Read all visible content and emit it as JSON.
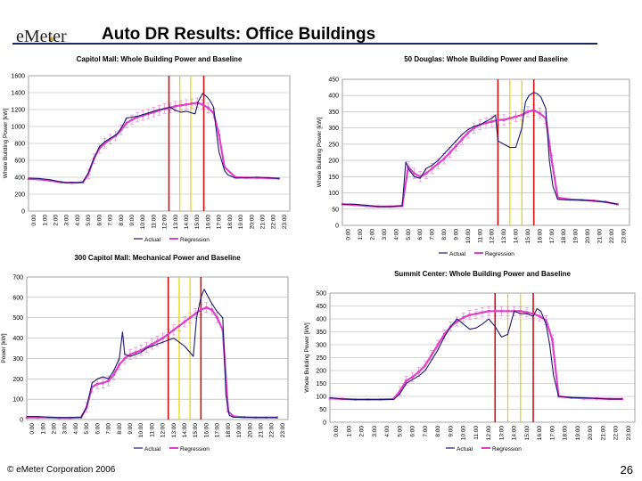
{
  "header": {
    "brand": "eMeter",
    "title": "Auto DR Results: Office Buildings"
  },
  "footer": {
    "copyright": "© eMeter Corporation 2006",
    "page_number": "26"
  },
  "colors": {
    "actual": "#1a1a6e",
    "regression": "#e040c8",
    "error_bar": "#e8a0e0",
    "red_line": "#d01010",
    "yellow_line": "#e8d000"
  },
  "hours": [
    "0:00",
    "1:00",
    "2:00",
    "3:00",
    "4:00",
    "5:00",
    "6:00",
    "7:00",
    "8:00",
    "9:00",
    "10:00",
    "11:00",
    "12:00",
    "13:00",
    "14:00",
    "15:00",
    "16:00",
    "17:00",
    "18:00",
    "19:00",
    "20:00",
    "21:00",
    "22:00",
    "23:00"
  ],
  "chart_data": [
    {
      "type": "line",
      "title": "Capitol Mall: Whole Building Power and Baseline",
      "ylabel": "Whole Building Power [kW]",
      "ylim": [
        0,
        1600
      ],
      "yticks": [
        0,
        200,
        400,
        600,
        800,
        1000,
        1200,
        1400,
        1600
      ],
      "grid": true,
      "legend": [
        "Actual",
        "Regression"
      ],
      "vlines": {
        "red": [
          12.9,
          16.1
        ],
        "yellow": [
          13.9,
          14.9
        ]
      },
      "series": [
        {
          "name": "Actual",
          "x": [
            0,
            1,
            2,
            3,
            3.5,
            4,
            4.5,
            5,
            5.5,
            6,
            6.5,
            7,
            7.5,
            8,
            8.3,
            8.6,
            9,
            9.5,
            10,
            10.5,
            11,
            11.5,
            12,
            12.5,
            13,
            13.5,
            14,
            14.5,
            15,
            15.3,
            15.6,
            16,
            16.3,
            16.6,
            17,
            17.2,
            17.5,
            18,
            18.3,
            19,
            20,
            21,
            22,
            23
          ],
          "values": [
            390,
            385,
            370,
            345,
            335,
            340,
            335,
            345,
            450,
            620,
            760,
            820,
            860,
            900,
            940,
            1000,
            1100,
            1110,
            1120,
            1140,
            1160,
            1180,
            1200,
            1210,
            1230,
            1190,
            1170,
            1180,
            1160,
            1150,
            1300,
            1390,
            1360,
            1320,
            1230,
            1000,
            700,
            480,
            430,
            390,
            395,
            400,
            395,
            385
          ]
        },
        {
          "name": "Regression",
          "x": [
            0,
            1,
            2,
            3,
            4,
            5,
            5.5,
            6,
            6.5,
            7,
            7.5,
            8,
            8.5,
            9,
            9.5,
            10,
            10.5,
            11,
            11.5,
            12,
            12.5,
            13,
            13.5,
            14,
            14.5,
            15,
            15.5,
            16,
            16.5,
            17,
            17.5,
            18,
            19,
            20,
            21,
            22,
            23
          ],
          "values": [
            380,
            375,
            360,
            340,
            335,
            340,
            440,
            620,
            740,
            800,
            850,
            890,
            960,
            1040,
            1080,
            1110,
            1130,
            1150,
            1170,
            1190,
            1210,
            1220,
            1240,
            1250,
            1260,
            1270,
            1280,
            1260,
            1220,
            1160,
            900,
            520,
            400,
            395,
            395,
            390,
            385
          ]
        }
      ]
    },
    {
      "type": "line",
      "title": "50 Douglas: Whole Building Power and Baseline",
      "ylabel": "Whole Building Power [kW]",
      "ylim": [
        0,
        450
      ],
      "yticks": [
        0,
        50,
        100,
        150,
        200,
        250,
        300,
        350,
        400,
        450
      ],
      "grid": true,
      "legend": [
        "Actual",
        "Regression"
      ],
      "vlines": {
        "red": [
          13.0,
          16.0
        ],
        "yellow": [
          14.0,
          15.0
        ]
      },
      "series": [
        {
          "name": "Actual",
          "x": [
            0,
            1,
            2,
            3,
            4,
            5,
            5.3,
            5.6,
            6,
            6.5,
            7,
            7.5,
            8,
            8.5,
            9,
            9.5,
            10,
            10.5,
            11,
            11.5,
            12,
            12.5,
            12.8,
            13,
            13.5,
            14,
            14.5,
            15,
            15.3,
            15.6,
            16,
            16.3,
            16.6,
            17,
            17.3,
            17.6,
            18,
            19,
            20,
            21,
            22,
            23
          ],
          "values": [
            65,
            65,
            62,
            58,
            58,
            60,
            195,
            170,
            150,
            145,
            175,
            185,
            200,
            220,
            240,
            260,
            280,
            295,
            305,
            310,
            320,
            330,
            340,
            260,
            250,
            240,
            240,
            300,
            380,
            400,
            410,
            405,
            395,
            360,
            200,
            120,
            80,
            78,
            78,
            75,
            72,
            65
          ]
        },
        {
          "name": "Regression",
          "x": [
            0,
            1,
            2,
            3,
            4,
            5,
            5.5,
            6,
            6.5,
            7,
            7.5,
            8,
            8.5,
            9,
            9.5,
            10,
            10.5,
            11,
            11.5,
            12,
            12.5,
            13,
            13.5,
            14,
            14.5,
            15,
            15.5,
            16,
            16.5,
            17,
            17.5,
            18,
            19,
            20,
            21,
            22,
            23
          ],
          "values": [
            65,
            63,
            60,
            58,
            58,
            60,
            180,
            160,
            150,
            160,
            175,
            190,
            205,
            225,
            245,
            265,
            285,
            300,
            310,
            315,
            320,
            325,
            325,
            330,
            335,
            340,
            350,
            355,
            345,
            330,
            200,
            85,
            80,
            78,
            76,
            72,
            65
          ]
        }
      ]
    },
    {
      "type": "line",
      "title": "300 Capitol Mall: Mechanical Power and Baseline",
      "ylabel": "Power [kW]",
      "ylim": [
        0,
        700
      ],
      "yticks": [
        0,
        100,
        200,
        300,
        400,
        500,
        600,
        700
      ],
      "grid": true,
      "legend": [
        "Actual",
        "Regression"
      ],
      "vlines": {
        "red": [
          13.0,
          16.0
        ],
        "yellow": [
          14.0,
          15.0
        ]
      },
      "series": [
        {
          "name": "Actual",
          "x": [
            0,
            1,
            2,
            3,
            4,
            5,
            5.5,
            6,
            6.5,
            7,
            7.5,
            8,
            8.5,
            8.8,
            9,
            9.5,
            10,
            10.5,
            11,
            11.5,
            12,
            12.5,
            13,
            13.5,
            14,
            14.5,
            15,
            15.3,
            15.6,
            16,
            16.3,
            16.6,
            17,
            17.5,
            18,
            18.3,
            18.6,
            19,
            20,
            21,
            22,
            23
          ],
          "values": [
            15,
            15,
            12,
            10,
            10,
            12,
            60,
            180,
            200,
            210,
            200,
            240,
            300,
            430,
            320,
            310,
            320,
            330,
            350,
            360,
            370,
            380,
            390,
            400,
            380,
            360,
            330,
            310,
            500,
            600,
            640,
            610,
            570,
            530,
            500,
            120,
            20,
            12,
            10,
            10,
            10,
            10
          ]
        },
        {
          "name": "Regression",
          "x": [
            0,
            1,
            2,
            3,
            4,
            5,
            5.5,
            6,
            6.5,
            7,
            7.5,
            8,
            8.5,
            9,
            9.5,
            10,
            10.5,
            11,
            11.5,
            12,
            12.5,
            13,
            13.5,
            14,
            14.5,
            15,
            15.5,
            16,
            16.5,
            17,
            17.5,
            18,
            18.5,
            19,
            20,
            21,
            22,
            23
          ],
          "values": [
            10,
            10,
            10,
            8,
            8,
            10,
            60,
            160,
            175,
            180,
            190,
            220,
            270,
            300,
            320,
            330,
            340,
            355,
            370,
            385,
            400,
            420,
            440,
            460,
            480,
            500,
            520,
            540,
            550,
            540,
            500,
            440,
            40,
            15,
            12,
            10,
            10,
            10
          ]
        }
      ]
    },
    {
      "type": "line",
      "title": "Summit Center: Whole Building Power and Baseline",
      "ylabel": "Whole Building Power [kW]",
      "ylim": [
        0,
        500
      ],
      "yticks": [
        0,
        50,
        100,
        150,
        200,
        250,
        300,
        350,
        400,
        450,
        500
      ],
      "grid": true,
      "legend": [
        "Actual",
        "Regression"
      ],
      "vlines": {
        "red": [
          13.0,
          16.0
        ],
        "yellow": [
          14.0,
          15.0
        ]
      },
      "series": [
        {
          "name": "Actual",
          "x": [
            0,
            1,
            2,
            3,
            4,
            5,
            5.5,
            6,
            6.5,
            7,
            7.5,
            8,
            8.5,
            9,
            9.5,
            10,
            10.5,
            11,
            11.5,
            12,
            12.5,
            13,
            13.5,
            14,
            14.5,
            15,
            15.5,
            16,
            16.3,
            16.6,
            17,
            17.3,
            17.6,
            18,
            19,
            20,
            21,
            22,
            23
          ],
          "values": [
            95,
            90,
            88,
            88,
            88,
            88,
            110,
            150,
            165,
            180,
            200,
            240,
            280,
            330,
            370,
            400,
            380,
            360,
            365,
            380,
            400,
            370,
            330,
            340,
            430,
            420,
            420,
            410,
            440,
            430,
            380,
            300,
            180,
            100,
            95,
            95,
            92,
            90,
            90
          ]
        },
        {
          "name": "Regression",
          "x": [
            0,
            1,
            2,
            3,
            4,
            5,
            5.5,
            6,
            6.5,
            7,
            7.5,
            8,
            8.5,
            9,
            9.5,
            10,
            10.5,
            11,
            11.5,
            12,
            12.5,
            13,
            13.5,
            14,
            14.5,
            15,
            15.5,
            16,
            16.5,
            17,
            17.5,
            18,
            19,
            20,
            21,
            22,
            23
          ],
          "values": [
            92,
            90,
            88,
            88,
            88,
            90,
            120,
            160,
            175,
            195,
            220,
            260,
            300,
            340,
            370,
            390,
            405,
            415,
            420,
            425,
            430,
            430,
            430,
            430,
            430,
            430,
            425,
            420,
            410,
            395,
            320,
            100,
            95,
            92,
            92,
            90,
            90
          ]
        }
      ]
    }
  ]
}
